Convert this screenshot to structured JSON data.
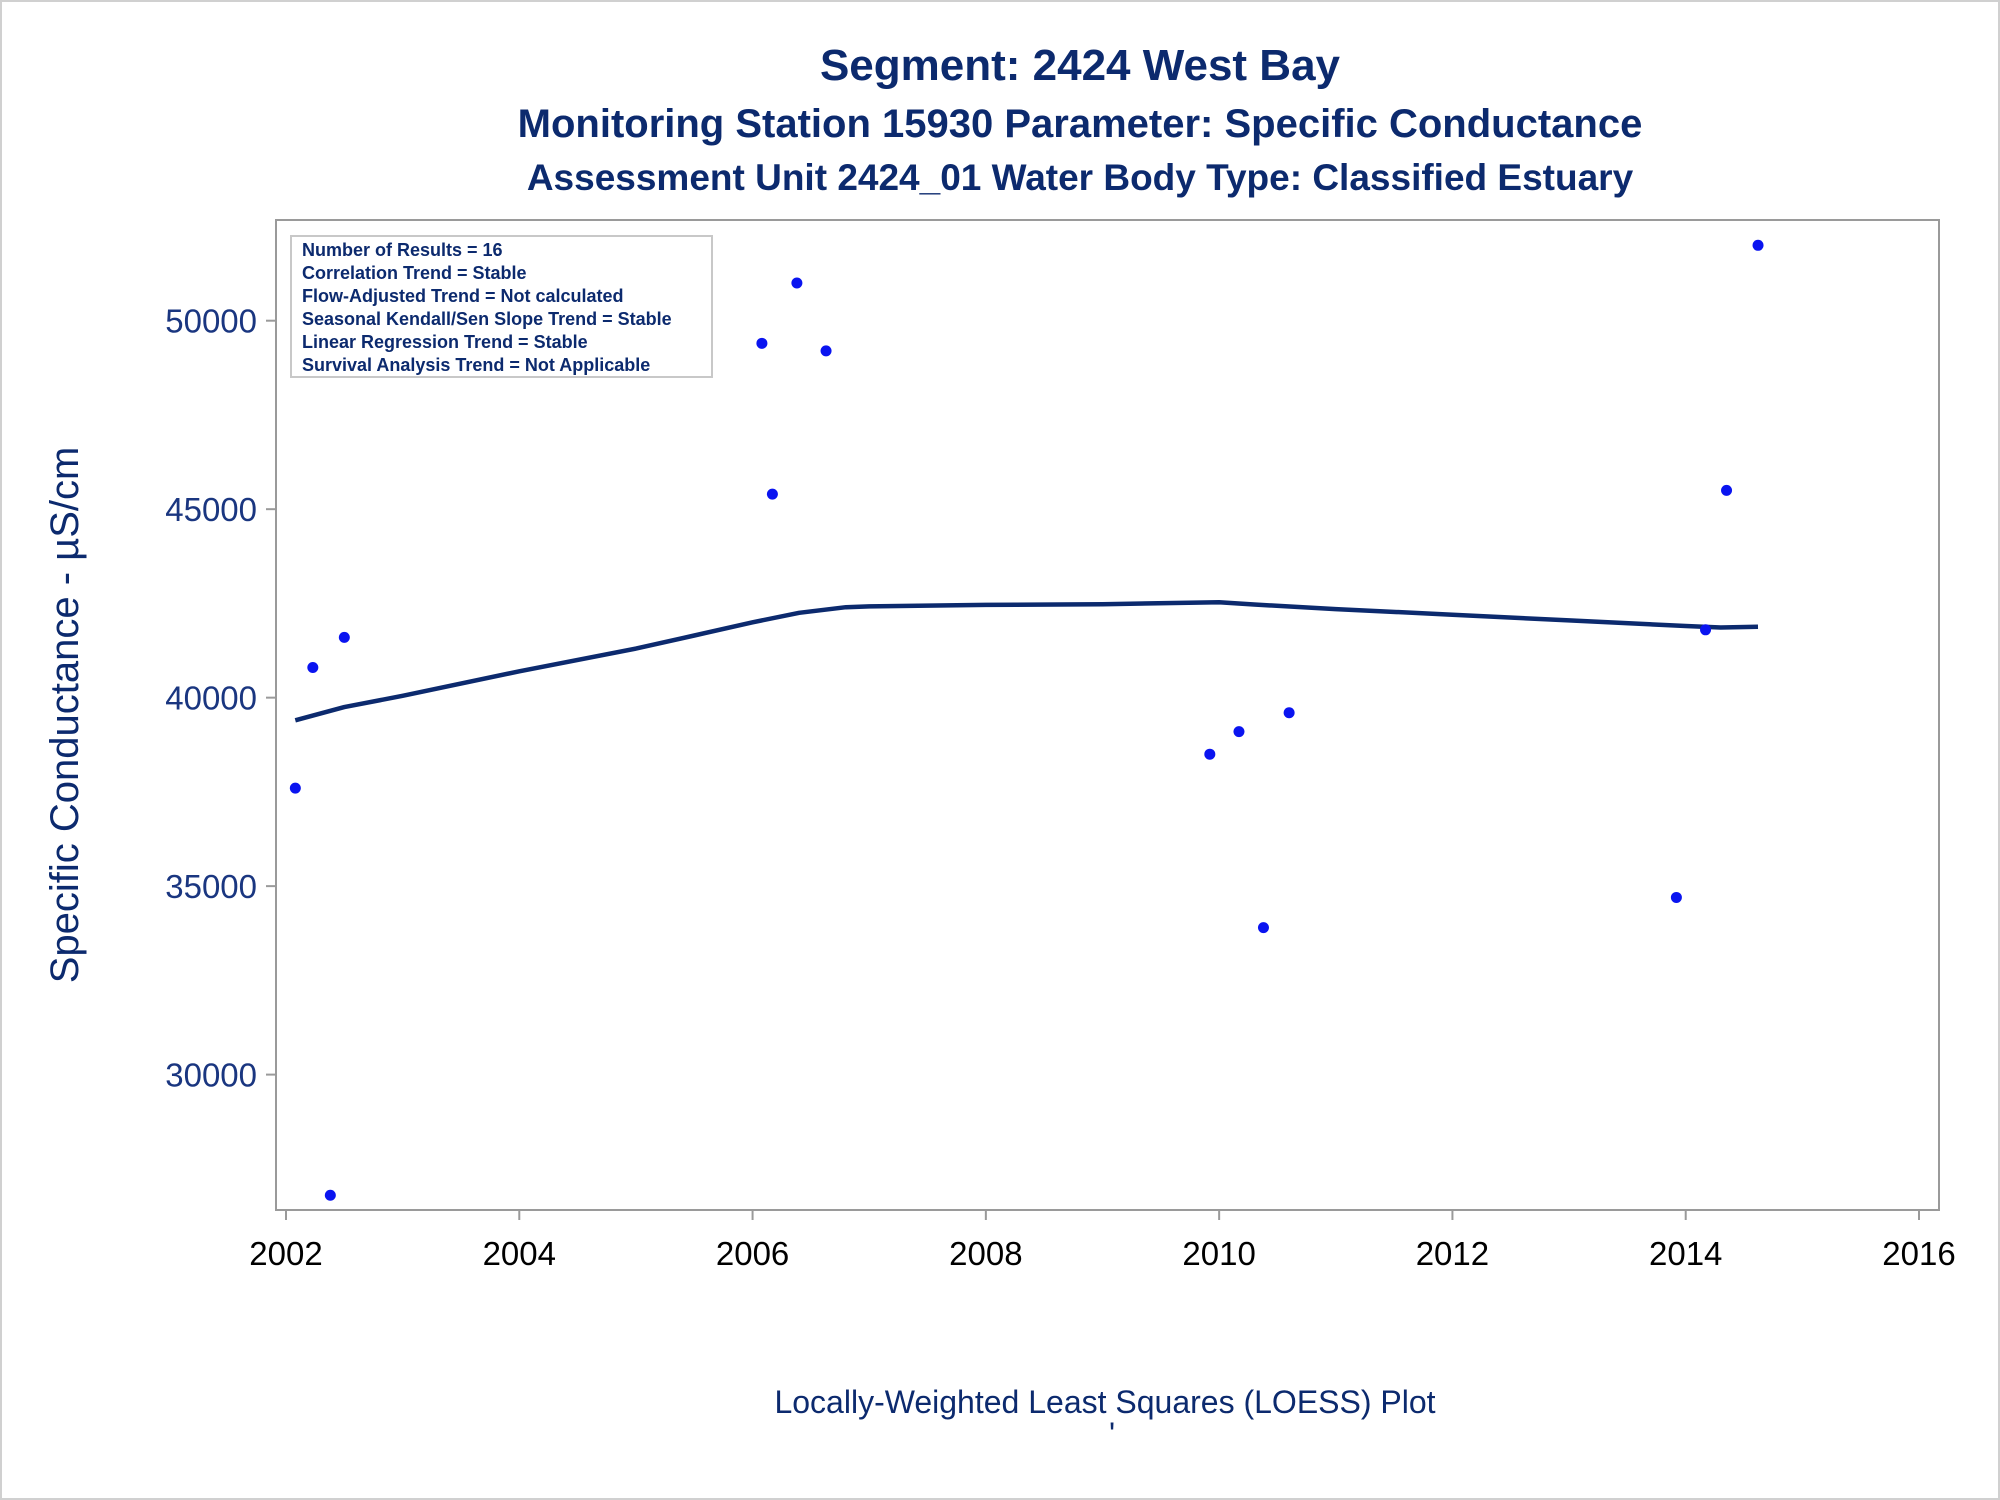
{
  "titles": {
    "line1": "Segment: 2424  West Bay",
    "line2": "Monitoring Station 15930 Parameter: Specific Conductance",
    "line3": "Assessment Unit 2424_01   Water Body Type: Classified Estuary"
  },
  "stats_box": {
    "lines": [
      "Number of Results = 16",
      "Correlation Trend = Stable",
      "Flow-Adjusted Trend = Not calculated",
      "Seasonal Kendall/Sen Slope Trend = Stable",
      "Linear Regression Trend = Stable",
      "Survival Analysis Trend = Not Applicable"
    ]
  },
  "colors": {
    "title": "#0c2a6e",
    "points": "#0a14f0",
    "loess_line": "#0c2a6e",
    "axis": "#9a9a9a"
  },
  "chart_data": {
    "type": "scatter",
    "title": "",
    "xlabel": "Locally-Weighted Least Squares (LOESS) Plot",
    "ylabel": "Specific Conductance -  µS/cm",
    "xlim": [
      2002.0,
      2016.0
    ],
    "ylim": [
      26700,
      52300
    ],
    "x_ticks": [
      2002,
      2004,
      2006,
      2008,
      2010,
      2012,
      2014,
      2016
    ],
    "y_ticks": [
      30000,
      35000,
      40000,
      45000,
      50000
    ],
    "grid": false,
    "legend_placement": "top-left",
    "series": [
      {
        "type": "scatter",
        "x": [
          2002.08,
          2002.23,
          2002.38,
          2002.5,
          2006.08,
          2006.17,
          2006.38,
          2006.63,
          2009.92,
          2010.17,
          2010.38,
          2010.6,
          2013.92,
          2014.17,
          2014.35,
          2014.62
        ],
        "y": [
          37600,
          40800,
          26800,
          41600,
          49400,
          45400,
          51000,
          49200,
          38500,
          39100,
          33900,
          39600,
          34700,
          41800,
          45500,
          52000
        ]
      },
      {
        "type": "line",
        "x": [
          2002.08,
          2002.5,
          2003.0,
          2004.0,
          2005.0,
          2005.5,
          2006.0,
          2006.4,
          2006.8,
          2007.0,
          2008.0,
          2009.0,
          2010.0,
          2010.3,
          2011.0,
          2012.0,
          2013.0,
          2014.0,
          2014.3,
          2014.62
        ],
        "y": [
          39400,
          39750,
          40050,
          40700,
          41300,
          41650,
          42000,
          42250,
          42400,
          42420,
          42460,
          42480,
          42530,
          42470,
          42350,
          42200,
          42050,
          41900,
          41860,
          41880
        ]
      }
    ]
  },
  "footnote": "'"
}
